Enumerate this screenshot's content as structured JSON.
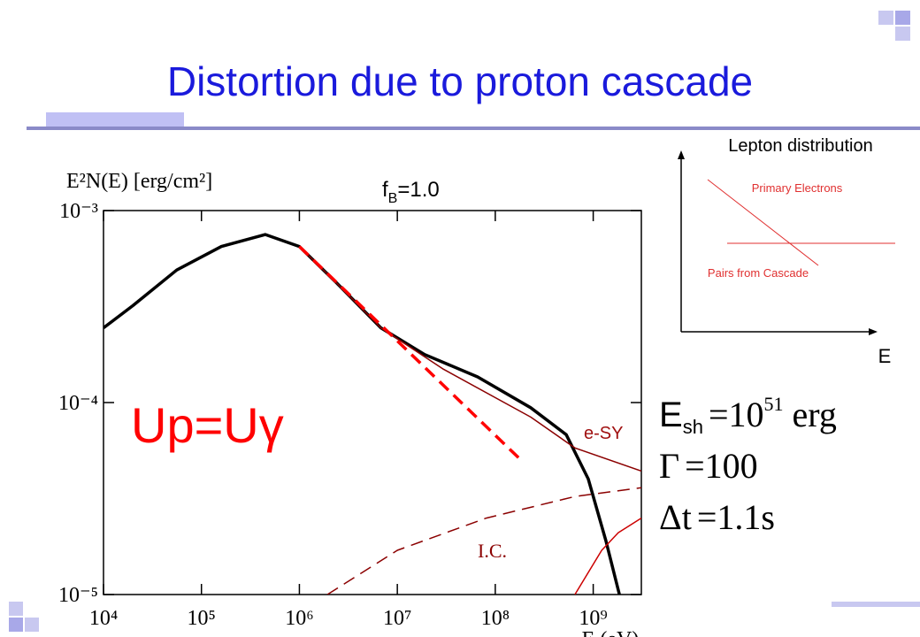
{
  "slide_title": "Distortion due to proton cascade",
  "chart_data": {
    "type": "line",
    "y_label": "E²N(E) [erg/cm²]",
    "x_label": "E (eV)",
    "panel_label": {
      "main": "f",
      "subscript": "B",
      "suffix": "=1.0"
    },
    "annotations": [
      "Up=Uγ",
      "e-SY",
      "I.C."
    ],
    "xlog": true,
    "ylog": true,
    "xlim": [
      10000.0,
      3100000000.0
    ],
    "ylim": [
      1e-05,
      0.001
    ],
    "xticks": [
      {
        "value": 10000.0,
        "label": "10⁴"
      },
      {
        "value": 100000.0,
        "label": "10⁵"
      },
      {
        "value": 1000000.0,
        "label": "10⁶"
      },
      {
        "value": 10000000.0,
        "label": "10⁷"
      },
      {
        "value": 100000000.0,
        "label": "10⁸"
      },
      {
        "value": 1000000000.0,
        "label": "10⁹"
      }
    ],
    "yticks": [
      {
        "value": 1e-05,
        "label": "10⁻⁵"
      },
      {
        "value": 0.0001,
        "label": "10⁻⁴"
      },
      {
        "value": 0.001,
        "label": "10⁻³"
      }
    ],
    "series": [
      {
        "color": "#000000",
        "width": 3.5,
        "dash": false,
        "x": [
          10000.0,
          20000.0,
          56000.0,
          160000.0,
          450000.0,
          1000000.0,
          2400000.0,
          6800000.0,
          19000000.0,
          66000000.0,
          230000000.0,
          530000000.0,
          890000000.0,
          1350000000.0,
          1850000000.0
        ],
        "values": [
          0.000245,
          0.00032,
          0.00049,
          0.00065,
          0.00075,
          0.00065,
          0.00042,
          0.000245,
          0.000178,
          0.000136,
          9.4e-05,
          6.8e-05,
          4e-05,
          1.9e-05,
          1e-05
        ]
      },
      {
        "color": "#8b0000",
        "width": 1.5,
        "dash": false,
        "x": [
          1000000.0,
          2400000.0,
          6800000.0,
          29000000.0,
          230000000.0,
          650000000.0,
          3100000000.0
        ],
        "values": [
          0.00065,
          0.00042,
          0.000245,
          0.00015,
          8.4e-05,
          5.8e-05,
          4.4e-05
        ]
      },
      {
        "color": "#8b0000",
        "width": 1.5,
        "dash": true,
        "x": [
          1930000.0,
          10000000.0,
          81000000.0,
          650000000.0,
          3100000000.0
        ],
        "values": [
          1e-05,
          1.7e-05,
          2.5e-05,
          3.24e-05,
          3.6e-05
        ]
      },
      {
        "color": "#cc0000",
        "width": 1.5,
        "dash": false,
        "x": [
          650000000.0,
          1220000000.0,
          1800000000.0,
          3100000000.0
        ],
        "values": [
          1e-05,
          1.7e-05,
          2.1e-05,
          2.5e-05
        ]
      },
      {
        "color": "#ff0000",
        "width": 3.5,
        "dash": true,
        "x": [
          1000000.0,
          180000000.0
        ],
        "values": [
          0.00065,
          5.06e-05
        ]
      }
    ]
  },
  "inset": {
    "title": "Lepton distribution",
    "axis": "E",
    "upper": "Primary Electrons",
    "lower": "Pairs from Cascade"
  },
  "equations": [
    {
      "symbol": "E",
      "subscript": "sh",
      "rhs": "=10",
      "exponent": "51",
      "unit": " erg"
    },
    {
      "symbol": "Γ",
      "rhs": "=100"
    },
    {
      "symbol": "Δt",
      "rhs": "=1.1s"
    }
  ]
}
